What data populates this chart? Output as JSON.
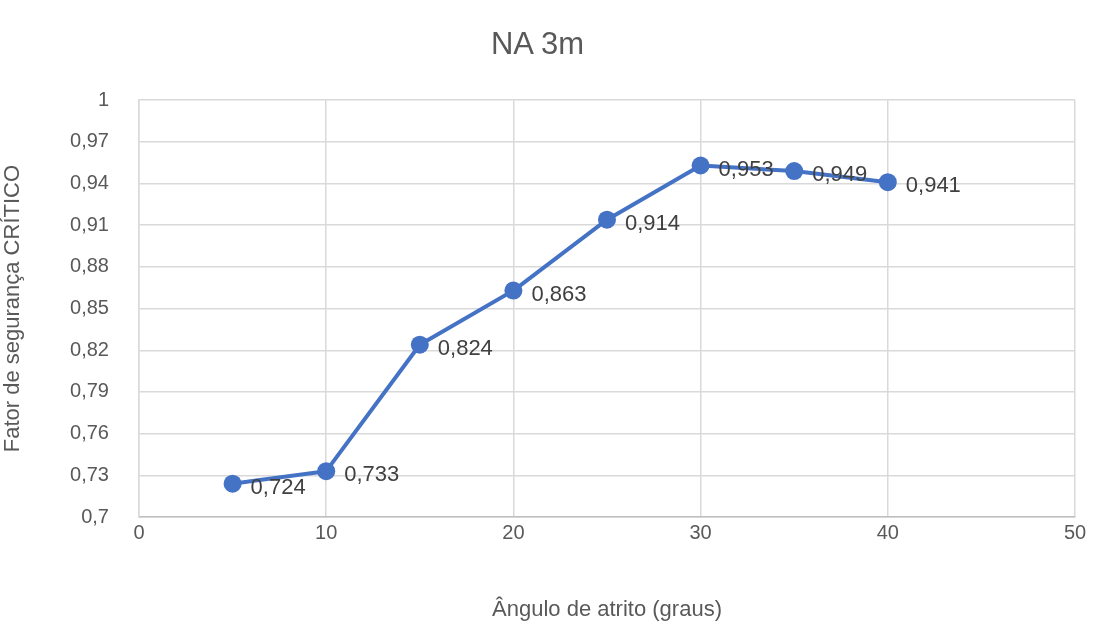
{
  "chart_data": {
    "type": "line",
    "title": "NA 3m",
    "xlabel": "Ângulo de atrito (graus)",
    "ylabel": "Fator de segurança CRÍTICO",
    "x": [
      5,
      10,
      15,
      20,
      25,
      30,
      35,
      40
    ],
    "series": [
      {
        "color": "#4472c4",
        "values": [
          0.724,
          0.733,
          0.824,
          0.863,
          0.914,
          0.953,
          0.949,
          0.941
        ],
        "value_labels": [
          "0,724",
          "0,733",
          "0,824",
          "0,863",
          "0,914",
          "0,953",
          "0,949",
          "0,941"
        ]
      }
    ],
    "xlim": [
      0,
      50
    ],
    "xticks": [
      0,
      10,
      20,
      30,
      40,
      50
    ],
    "ylim": [
      0.7,
      1
    ],
    "yticks": [
      {
        "value": 0.7,
        "label": "0,7"
      },
      {
        "value": 0.73,
        "label": "0,73"
      },
      {
        "value": 0.76,
        "label": "0,76"
      },
      {
        "value": 0.79,
        "label": "0,79"
      },
      {
        "value": 0.82,
        "label": "0,82"
      },
      {
        "value": 0.85,
        "label": "0,85"
      },
      {
        "value": 0.88,
        "label": "0,88"
      },
      {
        "value": 0.91,
        "label": "0,91"
      },
      {
        "value": 0.94,
        "label": "0,94"
      },
      {
        "value": 0.97,
        "label": "0,97"
      },
      1
    ],
    "grid": true,
    "marker": "circle",
    "line_style": "solid"
  }
}
